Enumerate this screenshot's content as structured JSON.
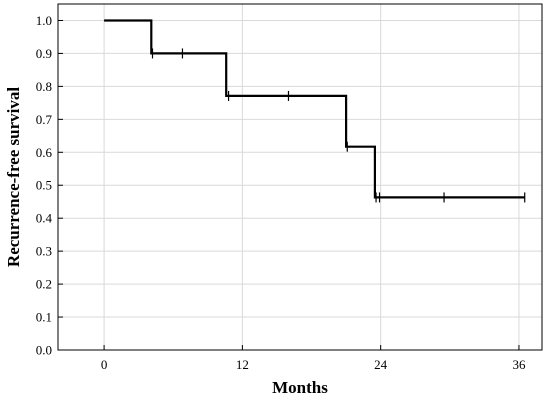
{
  "chart_data": {
    "type": "line",
    "xlabel": "Months",
    "ylabel": "Recurrence-free survival",
    "xlim": [
      -4,
      38
    ],
    "ylim": [
      0,
      1.05
    ],
    "xticks": [
      0,
      12,
      24,
      36
    ],
    "xtick_labels": [
      "0",
      "12",
      "24",
      "36"
    ],
    "yticks": [
      0,
      0.1,
      0.2,
      0.3,
      0.4,
      0.5,
      0.6,
      0.7,
      0.8,
      0.9,
      1.0
    ],
    "ytick_labels": [
      "0.0",
      "0.1",
      "0.2",
      "0.3",
      "0.4",
      "0.5",
      "0.6",
      "0.7",
      "0.8",
      "0.9",
      "1.0"
    ],
    "grid": true,
    "series": [
      {
        "style": "step",
        "color": "#000000",
        "steps": [
          {
            "x": 0,
            "y": 1.0
          },
          {
            "x": 4.1,
            "y": 0.9
          },
          {
            "x": 10.6,
            "y": 0.771
          },
          {
            "x": 21.0,
            "y": 0.617
          },
          {
            "x": 23.5,
            "y": 0.463
          },
          {
            "x": 36.5,
            "y": 0.463
          }
        ],
        "censored": [
          {
            "x": 4.2,
            "y": 0.9
          },
          {
            "x": 6.8,
            "y": 0.9
          },
          {
            "x": 10.8,
            "y": 0.771
          },
          {
            "x": 16.0,
            "y": 0.771
          },
          {
            "x": 21.1,
            "y": 0.617
          },
          {
            "x": 23.6,
            "y": 0.463
          },
          {
            "x": 23.9,
            "y": 0.463
          },
          {
            "x": 29.5,
            "y": 0.463
          },
          {
            "x": 36.5,
            "y": 0.463
          }
        ]
      }
    ]
  }
}
